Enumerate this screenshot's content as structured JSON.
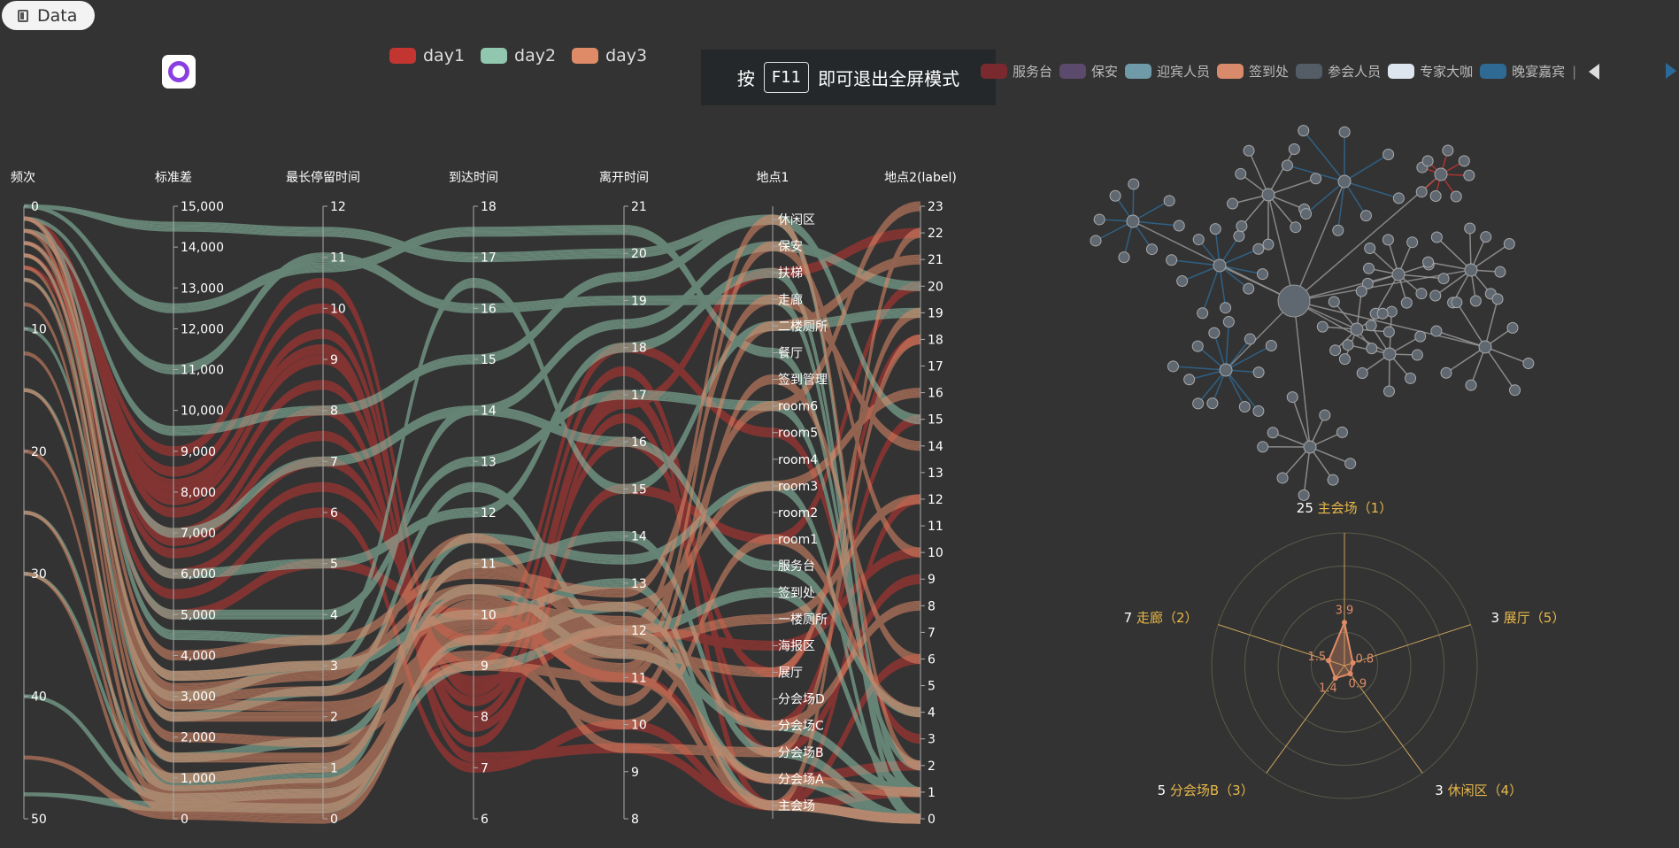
{
  "toolbar": {
    "data_label": "Data",
    "data_icon": "document-icon",
    "app_icon": "search-app-icon"
  },
  "notice": {
    "prefix": "按",
    "key": "F11",
    "suffix": "即可退出全屏模式"
  },
  "colors": {
    "day1": "#c23531",
    "day2": "#91c7ae",
    "day3": "#e08b68",
    "background": "#333333"
  },
  "day_legend": [
    {
      "label": "day1",
      "color": "#c23531"
    },
    {
      "label": "day2",
      "color": "#91c7ae"
    },
    {
      "label": "day3",
      "color": "#e08b68"
    }
  ],
  "role_legend": [
    {
      "label": "服务台",
      "color": "#7a2a2e"
    },
    {
      "label": "保安",
      "color": "#5b4a6b"
    },
    {
      "label": "迎宾人员",
      "color": "#6f9aa8"
    },
    {
      "label": "签到处",
      "color": "#d98a6a"
    },
    {
      "label": "参会人员",
      "color": "#545d66"
    },
    {
      "label": "专家大咖",
      "color": "#dde6ee"
    },
    {
      "label": "晚宴嘉宾",
      "color": "#2f6a94"
    }
  ],
  "chart_data": [
    {
      "type": "parallel",
      "axes": [
        {
          "name": "频次",
          "ticks": [
            "0",
            "10",
            "20",
            "30",
            "40",
            "50"
          ],
          "range": [
            0,
            50
          ],
          "inverse": true
        },
        {
          "name": "标准差",
          "ticks": [
            "0",
            "1,000",
            "2,000",
            "3,000",
            "4,000",
            "5,000",
            "6,000",
            "7,000",
            "8,000",
            "9,000",
            "10,000",
            "11,000",
            "12,000",
            "13,000",
            "14,000",
            "15,000"
          ],
          "range": [
            0,
            15000
          ]
        },
        {
          "name": "最长停留时间",
          "ticks": [
            "0",
            "1",
            "2",
            "3",
            "4",
            "5",
            "6",
            "7",
            "8",
            "9",
            "10",
            "11",
            "12"
          ],
          "range": [
            0,
            12
          ]
        },
        {
          "name": "到达时间",
          "ticks": [
            "6",
            "7",
            "8",
            "9",
            "10",
            "11",
            "12",
            "13",
            "14",
            "15",
            "16",
            "17",
            "18"
          ],
          "range": [
            6,
            18
          ]
        },
        {
          "name": "离开时间",
          "ticks": [
            "8",
            "9",
            "10",
            "11",
            "12",
            "13",
            "14",
            "15",
            "16",
            "17",
            "18",
            "19",
            "20",
            "21"
          ],
          "range": [
            8,
            21
          ]
        },
        {
          "name": "地点1",
          "categories": [
            "主会场",
            "分会场A",
            "分会场B",
            "分会场C",
            "分会场D",
            "展厅",
            "海报区",
            "一楼厕所",
            "签到处",
            "服务台",
            "room1",
            "room2",
            "room3",
            "room4",
            "room5",
            "room6",
            "签到管理",
            "餐厅",
            "二楼厕所",
            "走廊",
            "扶梯",
            "保安",
            "休闲区"
          ]
        },
        {
          "name": "地点2(label)",
          "ticks": [
            "0",
            "1",
            "2",
            "3",
            "4",
            "5",
            "6",
            "7",
            "8",
            "9",
            "10",
            "11",
            "12",
            "13",
            "14",
            "15",
            "16",
            "17",
            "18",
            "19",
            "20",
            "21",
            "22",
            "23"
          ],
          "range": [
            0,
            23
          ]
        }
      ],
      "series": [
        {
          "name": "day1",
          "color": "#c23531",
          "profiles": [
            [
              1,
              8000,
              9.5,
              8,
              17,
              3,
              15
            ],
            [
              2,
              7800,
              9,
              7.5,
              16.5,
              0,
              12
            ],
            [
              1,
              7500,
              8.5,
              8.3,
              16,
              5,
              18
            ],
            [
              3,
              6500,
              7,
              9,
              17.5,
              2,
              9
            ],
            [
              1,
              8500,
              10,
              7.8,
              15,
              10,
              20
            ],
            [
              2,
              9000,
              10.5,
              8.5,
              17,
              0,
              6
            ],
            [
              1,
              6000,
              6.5,
              9.5,
              18,
              14,
              3
            ],
            [
              5,
              5500,
              6,
              7,
              10,
              0,
              1
            ],
            [
              2,
              7000,
              8,
              8,
              16.8,
              20,
              22
            ],
            [
              1,
              8200,
              9.2,
              7.2,
              9.5,
              0,
              0
            ],
            [
              4,
              5000,
              5,
              10,
              11,
              1,
              2
            ],
            [
              2,
              6800,
              7.5,
              8.7,
              12,
              6,
              10
            ]
          ]
        },
        {
          "name": "day2",
          "color": "#91c7ae",
          "profiles": [
            [
              0,
              14500,
              11.5,
              17,
              20,
              22,
              1
            ],
            [
              1,
              11000,
              11,
              16,
              19,
              19,
              0
            ],
            [
              2,
              9500,
              8,
              15,
              19.5,
              22,
              15
            ],
            [
              1,
              6000,
              5,
              12,
              18,
              20,
              0
            ],
            [
              3,
              5000,
              4,
              13,
              17,
              15,
              2
            ],
            [
              10,
              3000,
              3,
              10,
              13,
              0,
              0
            ],
            [
              25,
              1000,
              1,
              11,
              14,
              2,
              0
            ],
            [
              40,
              500,
              0.5,
              9,
              12,
              8,
              1
            ],
            [
              2,
              7000,
              7,
              14,
              18.5,
              21,
              20
            ],
            [
              1,
              4500,
              3.5,
              16.5,
              15,
              18,
              19
            ],
            [
              6,
              2500,
              2.5,
              12.5,
              12,
              1,
              0
            ],
            [
              15,
              1500,
              1.5,
              10.5,
              11.5,
              3,
              1
            ],
            [
              30,
              800,
              0.8,
              11.5,
              13.5,
              12,
              0
            ],
            [
              48,
              300,
              0.2,
              9.5,
              12.5,
              0,
              0
            ],
            [
              0,
              12500,
              10.8,
              17.5,
              20.5,
              17,
              1
            ],
            [
              4,
              3500,
              3,
              14,
              16,
              9,
              4
            ]
          ]
        },
        {
          "name": "day3",
          "color": "#e08b68",
          "profiles": [
            [
              1,
              3000,
              2.5,
              10,
              12,
              0,
              22
            ],
            [
              2,
              2500,
              2,
              9.5,
              11.5,
              5,
              19
            ],
            [
              3,
              3500,
              3,
              10.5,
              12.5,
              12,
              16
            ],
            [
              5,
              2000,
              1.5,
              9,
              11,
              18,
              21
            ],
            [
              8,
              1000,
              1,
              11,
              12,
              22,
              2
            ],
            [
              12,
              500,
              0.5,
              10,
              11,
              0,
              0
            ],
            [
              20,
              300,
              0.3,
              9.8,
              11.8,
              7,
              12
            ],
            [
              30,
              200,
              0.2,
              10.2,
              12.2,
              3,
              8
            ],
            [
              45,
              100,
              0,
              9.6,
              11.6,
              1,
              1
            ],
            [
              1,
              4000,
              3.5,
              10.8,
              12.8,
              19,
              14
            ],
            [
              2,
              3200,
              2.8,
              11.5,
              10.5,
              16,
              6
            ],
            [
              4,
              2800,
              2.2,
              9.2,
              10,
              10,
              4
            ],
            [
              6,
              1500,
              1.2,
              10.4,
              9.5,
              2,
              18
            ],
            [
              15,
              700,
              0.7,
              9.9,
              12,
              15,
              23
            ],
            [
              25,
              400,
              0.4,
              10.1,
              11.2,
              21,
              10
            ]
          ]
        }
      ]
    },
    {
      "type": "radar",
      "indicators": [
        {
          "badge": "25",
          "name": "主会场（1）",
          "value": 3.9
        },
        {
          "badge": "3",
          "name": "展厅（5）",
          "value": 0.8
        },
        {
          "badge": "3",
          "name": "休闲区（4）",
          "value": 0.9
        },
        {
          "badge": "5",
          "name": "分会场B（3）",
          "value": 1.4
        },
        {
          "badge": "7",
          "name": "走廊（2）",
          "value": 1.5
        }
      ],
      "max": 12,
      "color": "#e08b68",
      "axis_color": "#c9a35a"
    },
    {
      "type": "graph",
      "description_colors": {
        "node": "#5f6770",
        "link_a": "#9a9a9a",
        "link_b": "#2f6a94",
        "hub": "#c23531"
      }
    }
  ]
}
